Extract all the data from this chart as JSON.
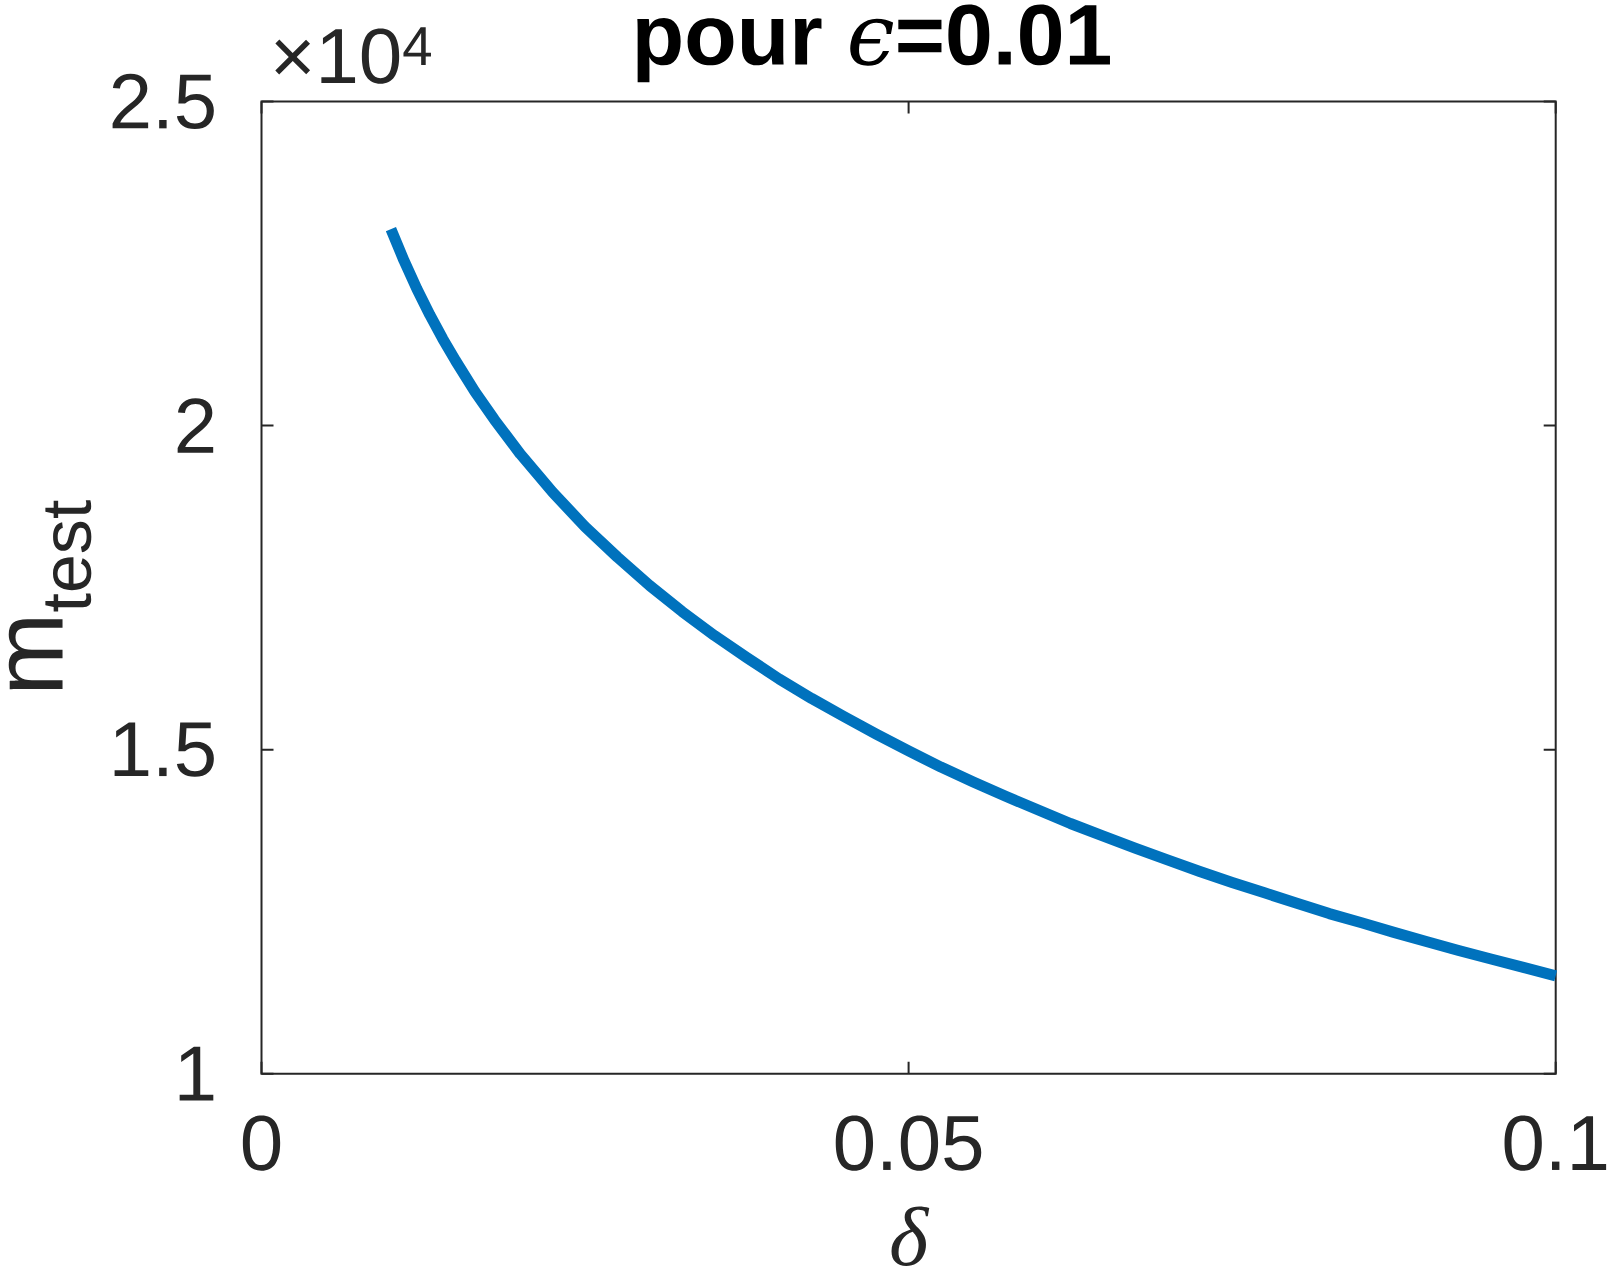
{
  "chart_data": {
    "type": "line",
    "title": "pour ϵ=0.01",
    "xlabel": "δ",
    "ylabel": "m$_{test}$",
    "annotations": [
      "×10$^{4}$"
    ],
    "x": [
      0.01,
      0.011,
      0.012,
      0.013,
      0.014,
      0.015,
      0.0165,
      0.018,
      0.02,
      0.0225,
      0.025,
      0.0275,
      0.03,
      0.0325,
      0.035,
      0.0375,
      0.04,
      0.0425,
      0.045,
      0.0475,
      0.05,
      0.0525,
      0.055,
      0.0575,
      0.06,
      0.0625,
      0.065,
      0.0675,
      0.07,
      0.0725,
      0.075,
      0.0775,
      0.08,
      0.0825,
      0.085,
      0.0875,
      0.09,
      0.0925,
      0.095,
      0.0975,
      0.1
    ],
    "values": [
      2.303,
      2.255,
      2.211,
      2.171,
      2.134,
      2.1,
      2.052,
      2.009,
      1.956,
      1.897,
      1.844,
      1.797,
      1.753,
      1.713,
      1.676,
      1.642,
      1.609,
      1.579,
      1.551,
      1.524,
      1.498,
      1.473,
      1.45,
      1.428,
      1.407,
      1.386,
      1.367,
      1.348,
      1.33,
      1.312,
      1.295,
      1.279,
      1.263,
      1.247,
      1.233,
      1.218,
      1.204,
      1.19,
      1.177,
      1.164,
      1.151
    ],
    "color": "#0072bd",
    "marker": "none",
    "line_style": "solid",
    "xlim": [
      0,
      0.1
    ],
    "ylim": [
      1,
      2.5
    ],
    "xticks": [
      0,
      0.05,
      0.1
    ],
    "yticks": [
      1,
      1.5,
      2,
      2.5
    ]
  }
}
